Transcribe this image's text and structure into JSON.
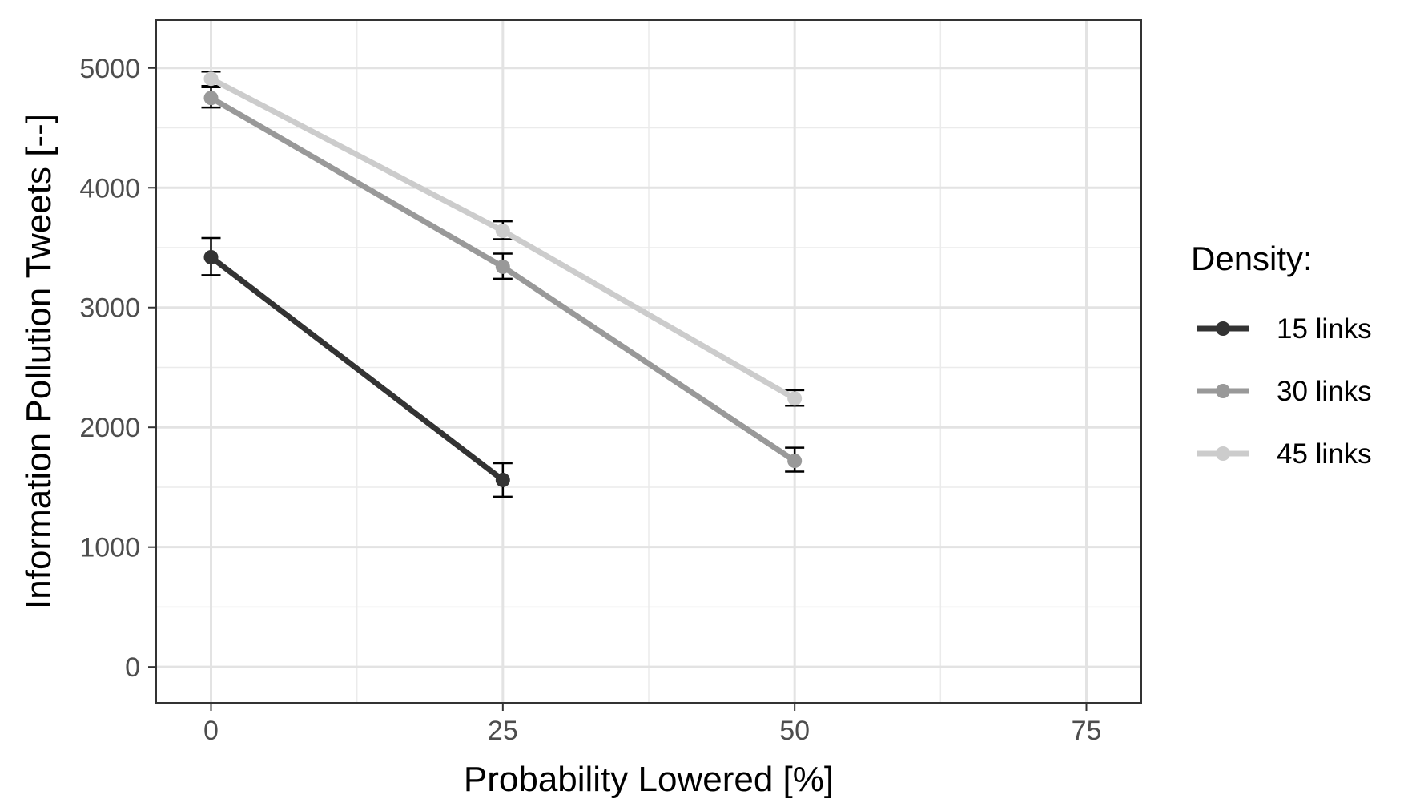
{
  "chart_data": {
    "type": "line",
    "xlabel": "Probability Lowered [%]",
    "ylabel": "Information Pollution Tweets [--]",
    "xlim": [
      -4.7,
      79.7
    ],
    "ylim": [
      -300,
      5400
    ],
    "x_ticks": [
      0,
      25,
      50,
      75
    ],
    "y_ticks": [
      0,
      1000,
      2000,
      3000,
      4000,
      5000
    ],
    "x_minor_ticks": [
      12.5,
      37.5,
      62.5
    ],
    "y_minor_ticks": [
      500,
      1500,
      2500,
      3500,
      4500
    ],
    "grid": true,
    "error_bars": true,
    "legend": {
      "title": "Density:",
      "placement": "right"
    },
    "series": [
      {
        "name": "15 links",
        "color": "#333333",
        "x": [
          0,
          25
        ],
        "y": [
          3420,
          1560
        ],
        "err_low": [
          3270,
          1420
        ],
        "err_high": [
          3580,
          1700
        ]
      },
      {
        "name": "30 links",
        "color": "#999999",
        "x": [
          0,
          25,
          50
        ],
        "y": [
          4750,
          3340,
          1720
        ],
        "err_low": [
          4670,
          3240,
          1630
        ],
        "err_high": [
          4850,
          3450,
          1830
        ]
      },
      {
        "name": "45 links",
        "color": "#cccccc",
        "x": [
          0,
          25,
          50
        ],
        "y": [
          4910,
          3640,
          2240
        ],
        "err_low": [
          4840,
          3570,
          2180
        ],
        "err_high": [
          4970,
          3720,
          2310
        ]
      }
    ]
  }
}
